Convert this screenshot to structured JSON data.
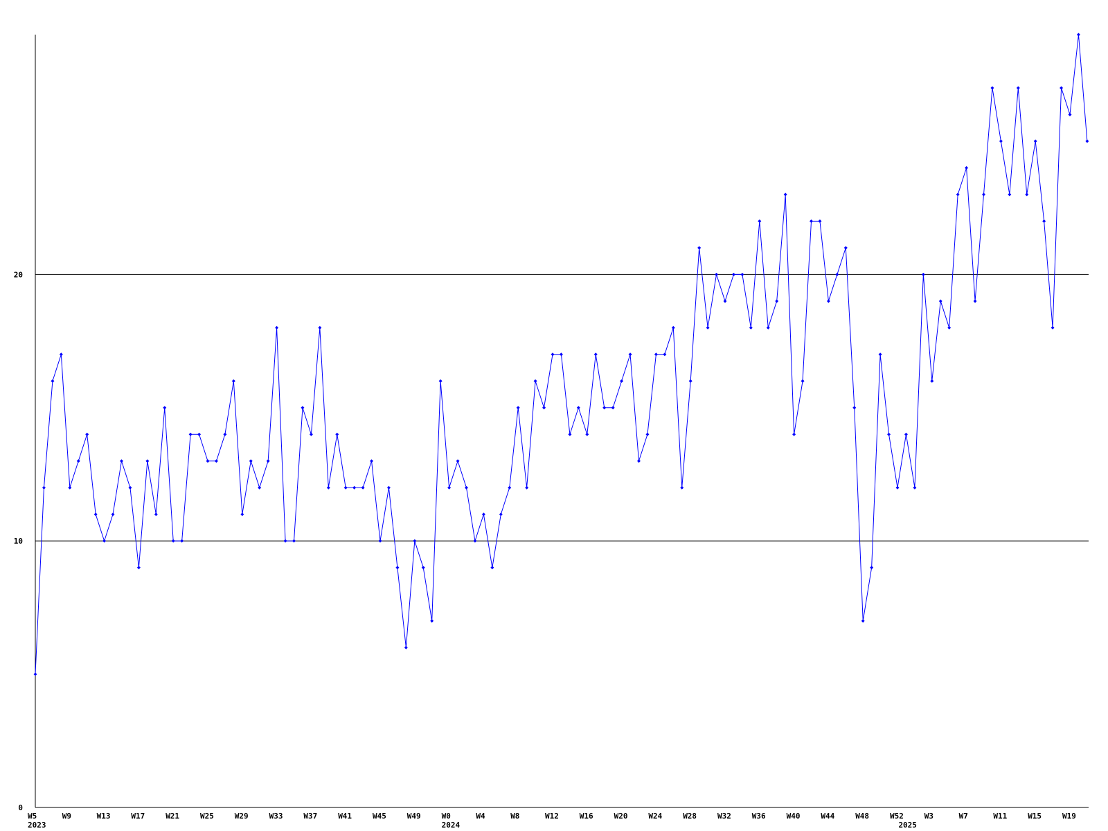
{
  "chart_data": {
    "type": "line",
    "color": "#0000ff",
    "grid": true,
    "ylim": [
      0,
      29
    ],
    "yticks": [
      0,
      10,
      20
    ],
    "categories": [
      "W5",
      null,
      null,
      null,
      "W9",
      null,
      null,
      null,
      "W13",
      null,
      null,
      null,
      "W17",
      null,
      null,
      null,
      "W21",
      null,
      null,
      null,
      "W25",
      null,
      null,
      null,
      "W29",
      null,
      null,
      null,
      "W33",
      null,
      null,
      null,
      "W37",
      null,
      null,
      null,
      "W41",
      null,
      null,
      null,
      "W45",
      null,
      null,
      null,
      "W49",
      null,
      null,
      null,
      "W0",
      null,
      null,
      null,
      "W4",
      null,
      null,
      null,
      "W8",
      null,
      null,
      null,
      "W12",
      null,
      null,
      null,
      "W16",
      null,
      null,
      null,
      "W20",
      null,
      null,
      null,
      "W24",
      null,
      null,
      null,
      "W28",
      null,
      null,
      null,
      "W32",
      null,
      null,
      null,
      "W36",
      null,
      null,
      null,
      "W40",
      null,
      null,
      null,
      "W44",
      null,
      null,
      null,
      "W48",
      null,
      null,
      null,
      "W52",
      null,
      null,
      null,
      "W3",
      null,
      null,
      null,
      "W7",
      null,
      null,
      null,
      "W11",
      null,
      null,
      null,
      "W15",
      null,
      null,
      null,
      "W19",
      null,
      null
    ],
    "year_labels": [
      "2023",
      null,
      null,
      null,
      null,
      null,
      null,
      null,
      null,
      null,
      null,
      null,
      null,
      null,
      null,
      null,
      null,
      null,
      null,
      null,
      null,
      null,
      null,
      null,
      null,
      null,
      null,
      null,
      null,
      null,
      null,
      null,
      null,
      null,
      null,
      null,
      null,
      null,
      null,
      null,
      null,
      null,
      null,
      null,
      null,
      null,
      null,
      null,
      "2024",
      null,
      null,
      null,
      null,
      null,
      null,
      null,
      null,
      null,
      null,
      null,
      null,
      null,
      null,
      null,
      null,
      null,
      null,
      null,
      null,
      null,
      null,
      null,
      null,
      null,
      null,
      null,
      null,
      null,
      null,
      null,
      null,
      null,
      null,
      null,
      null,
      null,
      null,
      null,
      null,
      null,
      null,
      null,
      null,
      null,
      null,
      null,
      null,
      null,
      null,
      null,
      null,
      "2025",
      null,
      null,
      null,
      null,
      null,
      null,
      null,
      null,
      null,
      null,
      null,
      null,
      null,
      null,
      null,
      null,
      null,
      null,
      null,
      null,
      null
    ],
    "values": [
      5,
      12,
      16,
      17,
      12,
      13,
      14,
      11,
      10,
      11,
      13,
      12,
      9,
      13,
      11,
      15,
      10,
      10,
      14,
      14,
      13,
      13,
      14,
      16,
      11,
      13,
      12,
      13,
      18,
      10,
      10,
      15,
      14,
      18,
      12,
      14,
      12,
      12,
      12,
      13,
      10,
      12,
      9,
      6,
      10,
      9,
      7,
      16,
      12,
      13,
      12,
      10,
      11,
      9,
      11,
      12,
      15,
      12,
      16,
      15,
      17,
      17,
      14,
      15,
      14,
      17,
      15,
      15,
      16,
      17,
      13,
      14,
      17,
      17,
      18,
      12,
      16,
      21,
      18,
      20,
      19,
      20,
      20,
      18,
      22,
      18,
      19,
      23,
      14,
      16,
      22,
      22,
      19,
      20,
      21,
      15,
      7,
      9,
      17,
      14,
      12,
      14,
      12,
      20,
      16,
      19,
      18,
      23,
      24,
      19,
      23,
      27,
      25,
      23,
      27,
      23,
      25,
      22,
      18,
      27,
      26,
      29,
      25
    ]
  }
}
